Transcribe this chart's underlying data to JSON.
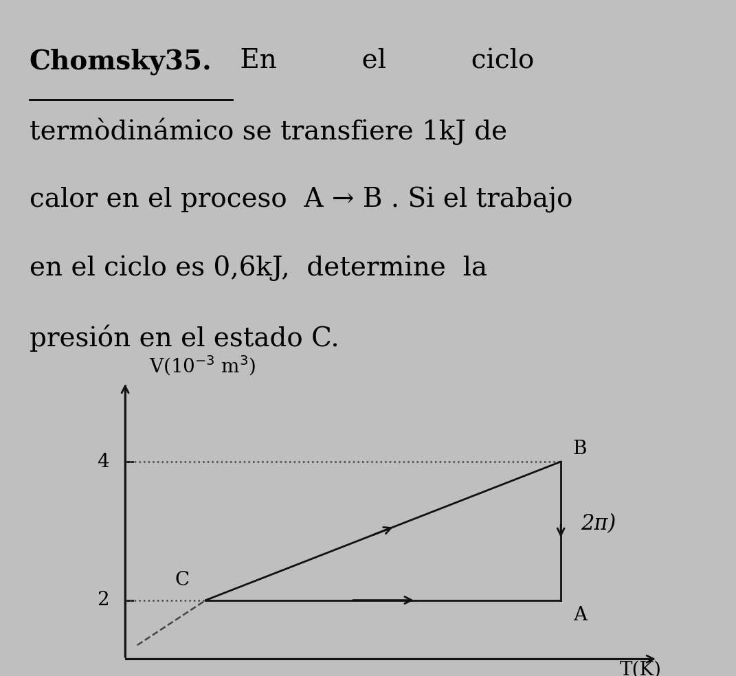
{
  "background_color": "#c0bfbf",
  "font_size_text": 28,
  "font_size_graph": 20,
  "line1_bold": "Chomsky35.",
  "line1_normal": " En          el          ciclo",
  "line2": "termòdinámico se transfiere 1kJ de",
  "line3": "calor en el proceso  A → B . Si el trabajo",
  "line4": "en el ciclo es 0,6kJ,  determine  la",
  "line5": "presión en el estado C.",
  "graph": {
    "xlim": [
      0,
      1.35
    ],
    "ylim": [
      1.1,
      5.2
    ],
    "yticks": [
      2,
      4
    ],
    "point_C": [
      0.2,
      2.0
    ],
    "point_A": [
      1.08,
      2.0
    ],
    "point_B": [
      1.08,
      4.0
    ],
    "line_color": "#111111",
    "dashed_color": "#444444",
    "label_C": "C",
    "label_A": "A",
    "label_B": "B"
  }
}
